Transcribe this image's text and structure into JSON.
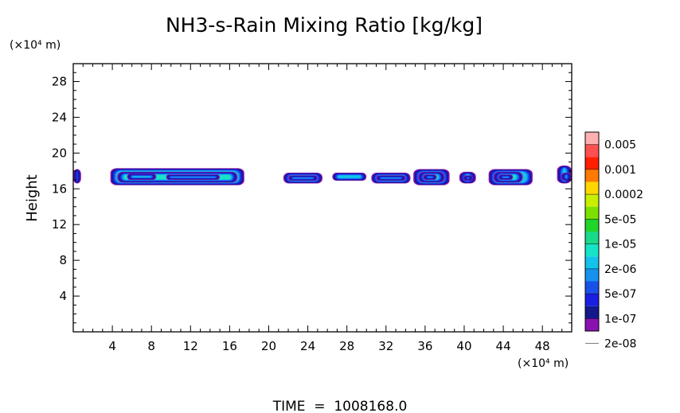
{
  "chart_data": {
    "type": "heatmap",
    "title": "NH3-s-Rain Mixing Ratio [kg/kg]",
    "ylabel": "Height",
    "y_unit": "(×10⁴ m)",
    "x_unit": "(×10⁴ m)",
    "xlim": [
      0,
      51
    ],
    "ylim": [
      0,
      30
    ],
    "xticks": [
      4,
      8,
      12,
      16,
      20,
      24,
      28,
      32,
      36,
      40,
      44,
      48
    ],
    "yticks": [
      4,
      8,
      12,
      16,
      20,
      24,
      28
    ],
    "footer": "TIME  =  1008168.0",
    "colorbar": {
      "labels": [
        "0.005",
        "0.001",
        "0.0002",
        "5e-05",
        "1e-05",
        "2e-06",
        "5e-07",
        "1e-07",
        "2e-08"
      ],
      "colors": [
        "#ffb0b0",
        "#ff5050",
        "#ff1e00",
        "#ff7a00",
        "#ffd700",
        "#c8ee00",
        "#7ee000",
        "#22d42a",
        "#19d98a",
        "#16e3c8",
        "#12c3ec",
        "#1592ee",
        "#1a50ea",
        "#1a1ee0",
        "#13188a",
        "#8a12b0"
      ]
    },
    "cells": [
      {
        "x0": 0.0,
        "x1": 0.8,
        "y0": 16.6,
        "y1": 18.2,
        "level": 6
      },
      {
        "x0": 3.8,
        "x1": 17.5,
        "y0": 16.4,
        "y1": 18.3,
        "level": 5
      },
      {
        "x0": 4.5,
        "x1": 16.8,
        "y0": 16.7,
        "y1": 17.9,
        "level": 6
      },
      {
        "x0": 5.5,
        "x1": 8.5,
        "y0": 17.0,
        "y1": 17.7,
        "level": 7
      },
      {
        "x0": 9.5,
        "x1": 15.0,
        "y0": 17.0,
        "y1": 17.6,
        "level": 7
      },
      {
        "x0": 21.5,
        "x1": 25.5,
        "y0": 16.6,
        "y1": 17.8,
        "level": 5
      },
      {
        "x0": 22.0,
        "x1": 25.0,
        "y0": 16.9,
        "y1": 17.5,
        "level": 6
      },
      {
        "x0": 26.5,
        "x1": 30.0,
        "y0": 16.9,
        "y1": 17.8,
        "level": 5
      },
      {
        "x0": 30.5,
        "x1": 34.5,
        "y0": 16.6,
        "y1": 17.8,
        "level": 5
      },
      {
        "x0": 31.0,
        "x1": 34.0,
        "y0": 16.9,
        "y1": 17.5,
        "level": 6
      },
      {
        "x0": 34.8,
        "x1": 38.5,
        "y0": 16.4,
        "y1": 18.2,
        "level": 5
      },
      {
        "x0": 35.3,
        "x1": 38.0,
        "y0": 16.7,
        "y1": 17.9,
        "level": 6
      },
      {
        "x0": 35.8,
        "x1": 37.2,
        "y0": 17.0,
        "y1": 17.6,
        "level": 7
      },
      {
        "x0": 39.5,
        "x1": 41.2,
        "y0": 16.6,
        "y1": 17.9,
        "level": 5
      },
      {
        "x0": 39.9,
        "x1": 40.9,
        "y0": 16.9,
        "y1": 17.5,
        "level": 6
      },
      {
        "x0": 42.5,
        "x1": 47.0,
        "y0": 16.4,
        "y1": 18.2,
        "level": 5
      },
      {
        "x0": 43.0,
        "x1": 46.0,
        "y0": 16.7,
        "y1": 17.9,
        "level": 6
      },
      {
        "x0": 43.5,
        "x1": 45.0,
        "y0": 17.0,
        "y1": 17.6,
        "level": 7
      },
      {
        "x0": 49.5,
        "x1": 51.0,
        "y0": 16.6,
        "y1": 18.6,
        "level": 5
      },
      {
        "x0": 49.9,
        "x1": 51.0,
        "y0": 16.9,
        "y1": 17.8,
        "level": 6
      }
    ]
  }
}
